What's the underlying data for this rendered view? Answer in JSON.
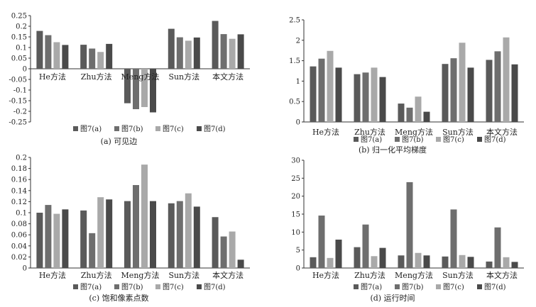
{
  "colors": {
    "s0": "#5a5a5a",
    "s1": "#6e6e6e",
    "s2": "#a9a9a9",
    "s3": "#4a4a4a"
  },
  "chart_data": [
    {
      "type": "bar",
      "caption": "(a) 可见边",
      "categories": [
        "He方法",
        "Zhu方法",
        "Meng方法",
        "Sun方法",
        "本文方法"
      ],
      "series": [
        {
          "name": "图7(a)",
          "values": [
            0.178,
            0.113,
            -0.162,
            0.188,
            0.225
          ]
        },
        {
          "name": "图7(b)",
          "values": [
            0.158,
            0.095,
            -0.19,
            0.148,
            0.163
          ]
        },
        {
          "name": "图7(c)",
          "values": [
            0.125,
            0.079,
            -0.18,
            0.132,
            0.141
          ]
        },
        {
          "name": "图7(d)",
          "values": [
            0.112,
            0.117,
            -0.205,
            0.147,
            0.162
          ]
        }
      ],
      "ylim": [
        -0.25,
        0.25
      ],
      "yticks": [
        "0.25",
        "0.2",
        "0.15",
        "0.1",
        "0.05",
        "0",
        "-0.05",
        "-0.1",
        "-0.15",
        "-0.2",
        "-0.25"
      ]
    },
    {
      "type": "bar",
      "caption": "(b) 归一化平均梯度",
      "categories": [
        "He方法",
        "Zhu方法",
        "Meng方法",
        "Sun方法",
        "本文方法"
      ],
      "series": [
        {
          "name": "图7(a)",
          "values": [
            1.36,
            1.17,
            0.45,
            1.42,
            1.52
          ]
        },
        {
          "name": "图7(b)",
          "values": [
            1.55,
            1.21,
            0.35,
            1.56,
            1.73
          ]
        },
        {
          "name": "图7(c)",
          "values": [
            1.74,
            1.33,
            0.62,
            1.94,
            2.07
          ]
        },
        {
          "name": "图7(d)",
          "values": [
            1.33,
            1.1,
            0.25,
            1.33,
            1.41
          ]
        }
      ],
      "ylim": [
        0,
        2.5
      ],
      "yticks": [
        "2.5",
        "2",
        "1.5",
        "1",
        "0.5",
        "0"
      ]
    },
    {
      "type": "bar",
      "caption": "(c) 饱和像素点数",
      "categories": [
        "He方法",
        "Zhu方法",
        "Meng方法",
        "Sun方法",
        "本文方法"
      ],
      "series": [
        {
          "name": "图7(a)",
          "values": [
            0.1,
            0.104,
            0.121,
            0.117,
            0.092
          ]
        },
        {
          "name": "图7(b)",
          "values": [
            0.114,
            0.063,
            0.15,
            0.121,
            0.057
          ]
        },
        {
          "name": "图7(c)",
          "values": [
            0.098,
            0.128,
            0.187,
            0.135,
            0.066
          ]
        },
        {
          "name": "图7(d)",
          "values": [
            0.106,
            0.124,
            0.121,
            0.111,
            0.015
          ]
        }
      ],
      "ylim": [
        0,
        0.2
      ],
      "yticks": [
        "0.2",
        "0.18",
        "0.16",
        "0.14",
        "0.12",
        "0.1",
        "0.08",
        "0.06",
        "0.04",
        "0.02",
        "0"
      ]
    },
    {
      "type": "bar",
      "caption": "(d) 运行时间",
      "categories": [
        "He方法",
        "Zhu方法",
        "Meng方法",
        "Sun方法",
        "本文方法"
      ],
      "series": [
        {
          "name": "图7(a)",
          "values": [
            3.0,
            5.8,
            3.5,
            3.2,
            1.8
          ]
        },
        {
          "name": "图7(b)",
          "values": [
            14.6,
            12.1,
            23.9,
            16.3,
            11.3
          ]
        },
        {
          "name": "图7(c)",
          "values": [
            2.8,
            3.3,
            4.2,
            3.6,
            3.0
          ]
        },
        {
          "name": "图7(d)",
          "values": [
            7.9,
            5.6,
            3.5,
            3.1,
            1.7
          ]
        }
      ],
      "ylim": [
        0,
        30
      ],
      "yticks": [
        "30",
        "25",
        "20",
        "15",
        "10",
        "5",
        "0"
      ]
    }
  ]
}
